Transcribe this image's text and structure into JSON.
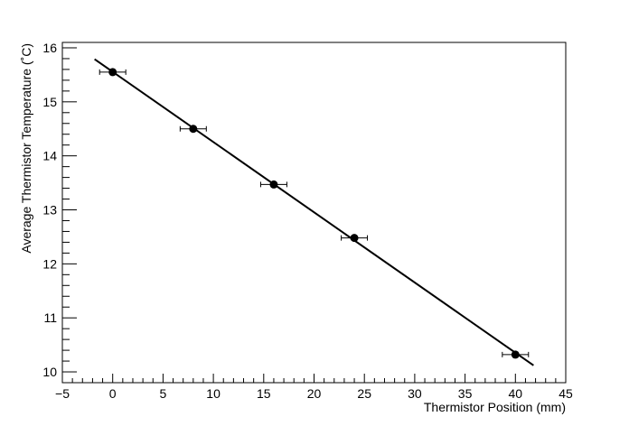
{
  "chart_data": {
    "type": "scatter",
    "title": "",
    "xlabel": "Thermistor Position (mm)",
    "ylabel": "Average Thermistor Temperature (˚C)",
    "xlim": [
      -5,
      45
    ],
    "ylim": [
      9.8,
      16.1
    ],
    "x_ticks": [
      "−5",
      "0",
      "5",
      "10",
      "15",
      "20",
      "25",
      "30",
      "35",
      "40",
      "45"
    ],
    "y_ticks": [
      "10",
      "11",
      "12",
      "13",
      "14",
      "15",
      "16"
    ],
    "grid": false,
    "legend": "none",
    "series": [
      {
        "points": [
          {
            "x": 0,
            "y": 15.55,
            "xerr": 1.3
          },
          {
            "x": 8,
            "y": 14.5,
            "xerr": 1.3
          },
          {
            "x": 16,
            "y": 13.47,
            "xerr": 1.3
          },
          {
            "x": 24,
            "y": 12.48,
            "xerr": 1.3
          },
          {
            "x": 40,
            "y": 10.32,
            "xerr": 1.3
          }
        ]
      }
    ],
    "fit_line": {
      "x_start": -1.8,
      "y_start": 15.79,
      "x_end": 41.8,
      "y_end": 10.12
    },
    "colors": {
      "marker": "#000000",
      "line": "#000000",
      "axes": "#000000"
    }
  }
}
